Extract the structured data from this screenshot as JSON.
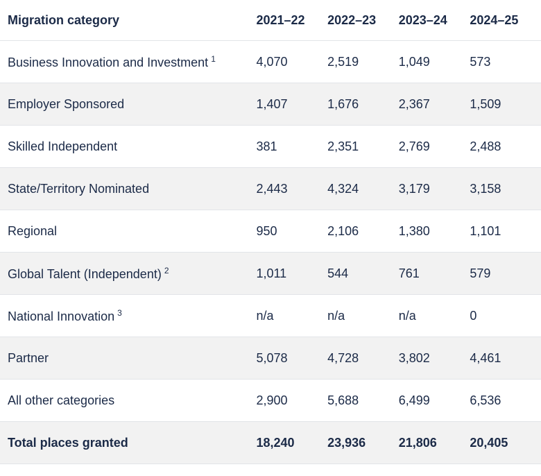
{
  "table": {
    "header": [
      "Migration category",
      "2021–22",
      "2022–23",
      "2023–24",
      "2024–25"
    ],
    "rows": [
      {
        "label": "Business Innovation and Investment",
        "note": "1",
        "cells": [
          "4,070",
          "2,519",
          "1,049",
          "573"
        ]
      },
      {
        "label": "Employer Sponsored",
        "cells": [
          "1,407",
          "1,676",
          "2,367",
          "1,509"
        ]
      },
      {
        "label": "Skilled Independent",
        "cells": [
          "381",
          "2,351",
          "2,769",
          "2,488"
        ]
      },
      {
        "label": "State/Territory Nominated",
        "cells": [
          "2,443",
          "4,324",
          "3,179",
          "3,158"
        ]
      },
      {
        "label": "Regional",
        "cells": [
          "950",
          "2,106",
          "1,380",
          "1,101"
        ]
      },
      {
        "label": "Global Talent (Independent)",
        "note": "2",
        "cells": [
          "1,011",
          "544",
          "761",
          "579"
        ]
      },
      {
        "label": "National Innovation",
        "note": "3",
        "cells": [
          "n/a",
          "n/a",
          "n/a",
          "0"
        ]
      },
      {
        "label": "Partner",
        "cells": [
          "5,078",
          "4,728",
          "3,802",
          "4,461"
        ]
      },
      {
        "label": "All other categories",
        "cells": [
          "2,900",
          "5,688",
          "6,499",
          "6,536"
        ]
      }
    ],
    "total": {
      "label": "Total places granted",
      "cells": [
        "18,240",
        "23,936",
        "21,806",
        "20,405"
      ]
    }
  }
}
